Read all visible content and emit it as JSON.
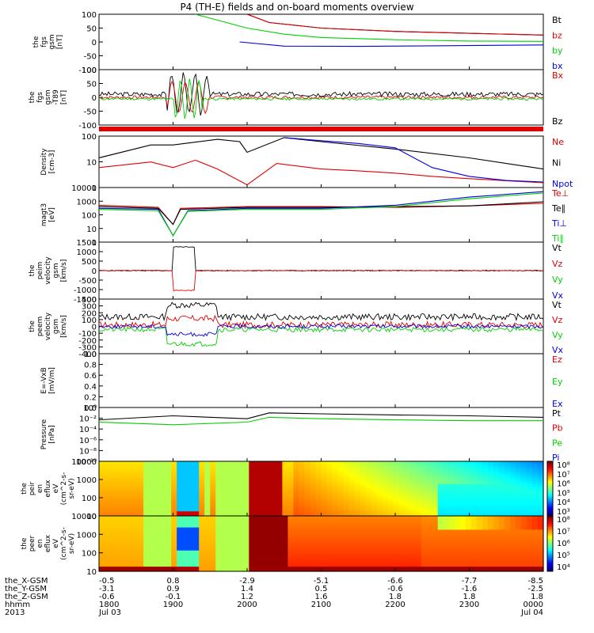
{
  "title": "P4 (TH-E) fields and on-board moments overview",
  "colors": {
    "black": "#000000",
    "red": "#e00000",
    "green": "#00d000",
    "blue": "#0000e0"
  },
  "panels": [
    {
      "id": "fgs",
      "ylabel": [
        "the",
        "fgs",
        "gsm",
        "[nT]"
      ],
      "ticks": [
        "100",
        "50",
        "0",
        "-50",
        "-100"
      ],
      "legend": [
        {
          "label": "Bt",
          "color": "#000000"
        },
        {
          "label": "bz",
          "color": "#e00000"
        },
        {
          "label": "by",
          "color": "#00d000"
        },
        {
          "label": "bx",
          "color": "#0000e0"
        }
      ]
    },
    {
      "id": "fgs-dt",
      "ylabel": [
        "the",
        "fgs",
        "gsm",
        "-T89",
        "[nT]"
      ],
      "ticks": [
        "100",
        "50",
        "0",
        "-50",
        "-100"
      ],
      "legend": [
        {
          "label": "Bx",
          "color": "#e00000"
        },
        {
          "label": "Bz",
          "color": "#000000"
        }
      ]
    },
    {
      "id": "density",
      "ylabel": [
        "Density",
        "[cm-3]"
      ],
      "ticks": [
        "100",
        "10",
        "1"
      ],
      "legend": [
        {
          "label": "Ne",
          "color": "#e00000"
        },
        {
          "label": "Ni",
          "color": "#000000"
        },
        {
          "label": "Npot",
          "color": "#0000e0"
        }
      ]
    },
    {
      "id": "temp",
      "ylabel": [
        "magt3",
        "[eV]"
      ],
      "ticks": [
        "10000",
        "1000",
        "100",
        "10",
        "1"
      ],
      "legend": [
        {
          "label": "Te⊥",
          "color": "#e00000"
        },
        {
          "label": "Te∥",
          "color": "#000000"
        },
        {
          "label": "Ti⊥",
          "color": "#0000e0"
        },
        {
          "label": "Ti∥",
          "color": "#00d000"
        }
      ]
    },
    {
      "id": "peim-vel",
      "ylabel": [
        "the",
        "peim",
        "velocity",
        "gsm",
        "[km/s]"
      ],
      "ticks": [
        "1500",
        "1000",
        "500",
        "0",
        "-500",
        "-1000",
        "-1500"
      ],
      "legend": [
        {
          "label": "Vt",
          "color": "#000000"
        },
        {
          "label": "Vz",
          "color": "#e00000"
        },
        {
          "label": "Vy",
          "color": "#00d000"
        },
        {
          "label": "Vx",
          "color": "#0000e0"
        }
      ]
    },
    {
      "id": "peem-vel",
      "ylabel": [
        "the",
        "peem",
        "velocity",
        "gsm",
        "[km/s]"
      ],
      "ticks": [
        "400",
        "300",
        "200",
        "100",
        "0",
        "-100",
        "-200",
        "-300",
        "-400"
      ],
      "legend": [
        {
          "label": "Vt",
          "color": "#000000"
        },
        {
          "label": "Vz",
          "color": "#e00000"
        },
        {
          "label": "Vy",
          "color": "#00d000"
        },
        {
          "label": "Vx",
          "color": "#0000e0"
        }
      ]
    },
    {
      "id": "efield",
      "ylabel": [
        "E=-VxB",
        "[mV/m]"
      ],
      "ticks": [
        "1.0",
        "0.8",
        "0.6",
        "0.4",
        "0.2",
        "0.0"
      ],
      "legend": [
        {
          "label": "Ez",
          "color": "#e00000"
        },
        {
          "label": "Ey",
          "color": "#00d000"
        },
        {
          "label": "Ex",
          "color": "#0000e0"
        }
      ]
    },
    {
      "id": "pressure",
      "ylabel": [
        "Pressure",
        "[nPa]"
      ],
      "ticks": [
        "10⁰",
        "10⁻²",
        "10⁻⁴",
        "10⁻⁶",
        "10⁻⁸",
        "10⁻¹⁰"
      ],
      "legend": [
        {
          "label": "Pt",
          "color": "#000000"
        },
        {
          "label": "Pb",
          "color": "#e00000"
        },
        {
          "label": "Pe",
          "color": "#00d000"
        },
        {
          "label": "Pi",
          "color": "#0000e0"
        }
      ]
    },
    {
      "id": "peir-eflux",
      "ylabel": [
        "the",
        "peir",
        "en",
        "eflux",
        "eV",
        "(cm^2-s-",
        "sr-eV)"
      ],
      "ticks": [
        "10000",
        "1000",
        "100",
        "10"
      ],
      "colorbar": [
        "10⁸",
        "10⁷",
        "10⁶",
        "10⁵",
        "10⁴",
        "10³"
      ]
    },
    {
      "id": "peer-eflux",
      "ylabel": [
        "the",
        "peer",
        "en",
        "eflux",
        "eV",
        "(cm^2-s-",
        "sr-eV)"
      ],
      "ticks": [
        "10000",
        "1000",
        "100",
        "10"
      ],
      "colorbar": [
        "10⁸",
        "10⁷",
        "10⁶",
        "10⁵",
        "10⁴"
      ]
    }
  ],
  "xaxis": {
    "row_labels": [
      "the_X-GSM",
      "the_Y-GSM",
      "the_Z-GSM",
      "hhmm",
      "2013"
    ],
    "columns": [
      [
        "-0.5",
        "-3.1",
        "-0.6",
        "1800",
        "Jul 03"
      ],
      [
        "0.8",
        "0.9",
        "-0.1",
        "1900",
        ""
      ],
      [
        "-2.9",
        "1.4",
        "1.2",
        "2000",
        ""
      ],
      [
        "-5.1",
        "0.5",
        "1.6",
        "2100",
        ""
      ],
      [
        "-6.6",
        "-0.6",
        "1.8",
        "2200",
        ""
      ],
      [
        "-7.7",
        "-1.6",
        "1.8",
        "2300",
        ""
      ],
      [
        "-8.5",
        "-2.5",
        "1.8",
        "0000",
        "Jul 04"
      ]
    ]
  },
  "chart_data": {
    "type": "line",
    "time_range": [
      "2013-07-03 18:00",
      "2013-07-04 00:00"
    ],
    "x_ticks": [
      "1800",
      "1900",
      "2000",
      "2100",
      "2200",
      "2300",
      "0000"
    ],
    "fgs_nT": {
      "ylim": [
        -100,
        100
      ],
      "series": [
        {
          "name": "Bt",
          "points": [
            [
              2.0,
              100
            ],
            [
              2.3,
              70
            ],
            [
              3.0,
              50
            ],
            [
              4.0,
              38
            ],
            [
              5.0,
              31
            ],
            [
              6.0,
              25
            ]
          ]
        },
        {
          "name": "bz",
          "points": [
            [
              2.0,
              100
            ],
            [
              2.3,
              70
            ],
            [
              3.0,
              50
            ],
            [
              4.0,
              38
            ],
            [
              5.0,
              31
            ],
            [
              6.0,
              25
            ]
          ]
        },
        {
          "name": "by",
          "points": [
            [
              1.3,
              100
            ],
            [
              2.0,
              50
            ],
            [
              2.5,
              28
            ],
            [
              3.0,
              16
            ],
            [
              4.0,
              8
            ],
            [
              5.0,
              3
            ],
            [
              6.0,
              2
            ]
          ]
        },
        {
          "name": "bx",
          "points": [
            [
              1.9,
              0
            ],
            [
              2.5,
              -15
            ],
            [
              3.5,
              -16
            ],
            [
              4.5,
              -14
            ],
            [
              6.0,
              -11
            ]
          ]
        }
      ]
    },
    "density_cm3": {
      "ylim": [
        0.5,
        300
      ],
      "log": true,
      "series": [
        {
          "name": "Ne",
          "points": [
            [
              0.0,
              6
            ],
            [
              0.7,
              12
            ],
            [
              1.0,
              6
            ],
            [
              1.3,
              15
            ],
            [
              1.6,
              5
            ],
            [
              2.0,
              0.7
            ],
            [
              2.4,
              10
            ],
            [
              3.0,
              5
            ],
            [
              3.5,
              4
            ],
            [
              4.0,
              3
            ],
            [
              4.5,
              2
            ],
            [
              5.0,
              1.5
            ],
            [
              6.0,
              0.9
            ]
          ]
        },
        {
          "name": "Ni",
          "points": [
            [
              0.0,
              20
            ],
            [
              0.7,
              100
            ],
            [
              1.0,
              100
            ],
            [
              1.6,
              200
            ],
            [
              1.9,
              150
            ],
            [
              2.0,
              40
            ],
            [
              2.5,
              250
            ],
            [
              3.0,
              150
            ],
            [
              4.0,
              60
            ],
            [
              5.0,
              20
            ],
            [
              6.0,
              5
            ]
          ]
        },
        {
          "name": "Npot",
          "points": [
            [
              2.5,
              250
            ],
            [
              3.0,
              170
            ],
            [
              3.5,
              120
            ],
            [
              4.0,
              70
            ],
            [
              4.5,
              6
            ],
            [
              5.0,
              2
            ],
            [
              5.5,
              1.2
            ],
            [
              6.0,
              1
            ]
          ]
        }
      ]
    },
    "temperature_eV": {
      "ylim": [
        1,
        10000
      ],
      "log": true,
      "series": [
        {
          "name": "Te⊥",
          "points": [
            [
              0.0,
              500
            ],
            [
              0.8,
              350
            ],
            [
              1.0,
              20
            ],
            [
              1.1,
              300
            ],
            [
              2.0,
              400
            ],
            [
              3.0,
              400
            ],
            [
              4.0,
              350
            ],
            [
              5.0,
              450
            ],
            [
              6.0,
              700
            ]
          ]
        },
        {
          "name": "Te∥",
          "points": [
            [
              0.0,
              400
            ],
            [
              0.8,
              300
            ],
            [
              1.0,
              20
            ],
            [
              1.1,
              250
            ],
            [
              2.0,
              350
            ],
            [
              3.0,
              350
            ],
            [
              4.0,
              400
            ],
            [
              5.0,
              450
            ],
            [
              6.0,
              900
            ]
          ]
        },
        {
          "name": "Ti⊥",
          "points": [
            [
              0.0,
              300
            ],
            [
              0.8,
              250
            ],
            [
              1.0,
              3
            ],
            [
              1.2,
              200
            ],
            [
              2.0,
              300
            ],
            [
              3.0,
              300
            ],
            [
              4.0,
              500
            ],
            [
              5.0,
              2000
            ],
            [
              6.0,
              5000
            ]
          ]
        },
        {
          "name": "Ti∥",
          "points": [
            [
              0.0,
              250
            ],
            [
              0.8,
              200
            ],
            [
              1.0,
              3
            ],
            [
              1.2,
              180
            ],
            [
              2.0,
              250
            ],
            [
              3.0,
              250
            ],
            [
              4.0,
              400
            ],
            [
              5.0,
              1500
            ],
            [
              6.0,
              4000
            ]
          ]
        }
      ]
    },
    "pressure_nPa": {
      "ylim": [
        1e-10,
        10
      ],
      "log": true,
      "series": [
        {
          "name": "Pt",
          "points": [
            [
              0.0,
              0.03
            ],
            [
              1.0,
              0.2
            ],
            [
              2.0,
              0.05
            ],
            [
              2.3,
              0.8
            ],
            [
              3.0,
              0.5
            ],
            [
              4.0,
              0.3
            ],
            [
              5.0,
              0.2
            ],
            [
              6.0,
              0.1
            ]
          ]
        },
        {
          "name": "Pe",
          "points": [
            [
              0.0,
              0.01
            ],
            [
              1.0,
              0.003
            ],
            [
              2.0,
              0.01
            ],
            [
              2.3,
              0.1
            ],
            [
              3.0,
              0.05
            ],
            [
              4.0,
              0.03
            ],
            [
              5.0,
              0.02
            ],
            [
              6.0,
              0.02
            ]
          ]
        }
      ]
    }
  }
}
